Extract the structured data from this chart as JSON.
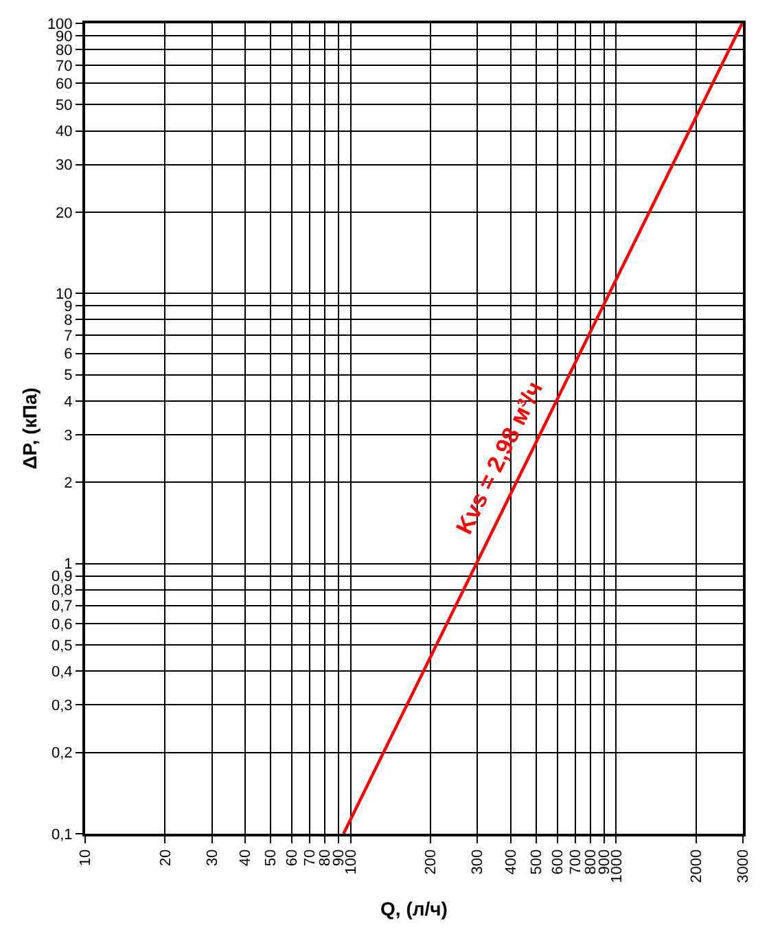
{
  "chart_data": {
    "type": "line",
    "xlabel": "Q, (л/ч)",
    "ylabel": "ΔP, (кПа)",
    "x": [
      94,
      2980
    ],
    "series": [
      {
        "color": "#ff0000",
        "values": [
          0.1,
          100
        ]
      }
    ],
    "log": "xy",
    "xlim": [
      10,
      3000
    ],
    "xticks": [
      10,
      20,
      30,
      40,
      50,
      60,
      70,
      80,
      90,
      100,
      200,
      300,
      400,
      500,
      600,
      700,
      800,
      900,
      1000,
      2000,
      3000
    ],
    "ylim": [
      0.1,
      100
    ],
    "yticks": [
      {
        "value": 0.1,
        "label": "0,1"
      },
      {
        "value": 0.2,
        "label": "0,2"
      },
      {
        "value": 0.3,
        "label": "0,3"
      },
      {
        "value": 0.4,
        "label": "0,4"
      },
      {
        "value": 0.5,
        "label": "0,5"
      },
      {
        "value": 0.6,
        "label": "0,6"
      },
      {
        "value": 0.7,
        "label": "0,7"
      },
      {
        "value": 0.8,
        "label": "0,8"
      },
      {
        "value": 0.9,
        "label": "0,9"
      },
      1,
      2,
      3,
      4,
      5,
      6,
      7,
      8,
      9,
      10,
      20,
      30,
      40,
      50,
      60,
      70,
      80,
      90,
      100
    ],
    "annotations": [
      "Kvs = 2,98 м³/ч"
    ],
    "grid": true,
    "marker": "none",
    "line_style": "solid"
  }
}
